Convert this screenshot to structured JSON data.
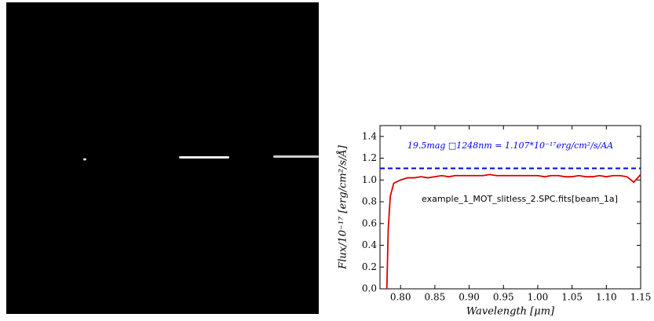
{
  "chart_data": {
    "type": "line",
    "title": "19.5mag □1248nm = 1.107*10⁻¹⁷erg/cm²/s/AA",
    "annotation": "example_1_MOT_slitless_2.SPC.fits[beam_1a]",
    "x_label": "Wavelength [μm]",
    "y_label": "Flux/10⁻¹⁷ [erg/cm²/s/Å]",
    "x": [
      0.78,
      0.782,
      0.785,
      0.79,
      0.8,
      0.81,
      0.82,
      0.83,
      0.84,
      0.85,
      0.86,
      0.87,
      0.88,
      0.89,
      0.9,
      0.91,
      0.92,
      0.93,
      0.94,
      0.95,
      0.96,
      0.97,
      0.98,
      0.99,
      1.0,
      1.01,
      1.02,
      1.03,
      1.04,
      1.05,
      1.06,
      1.07,
      1.08,
      1.09,
      1.1,
      1.11,
      1.12,
      1.13,
      1.14,
      1.15
    ],
    "series": [
      {
        "color": "#dd0000",
        "values": [
          0.0,
          0.55,
          0.85,
          0.97,
          1.0,
          1.02,
          1.02,
          1.03,
          1.02,
          1.03,
          1.04,
          1.03,
          1.04,
          1.04,
          1.04,
          1.04,
          1.04,
          1.05,
          1.04,
          1.04,
          1.04,
          1.04,
          1.04,
          1.04,
          1.04,
          1.03,
          1.04,
          1.04,
          1.03,
          1.03,
          1.04,
          1.03,
          1.03,
          1.04,
          1.03,
          1.04,
          1.04,
          1.03,
          0.98,
          1.05
        ]
      }
    ],
    "reference_line": {
      "value": 1.107,
      "color": "#0000ee"
    },
    "xlim": [
      0.77,
      1.15
    ],
    "ylim": [
      0,
      1.5
    ],
    "xticks": [
      {
        "value": 0.8,
        "label": "0.80"
      },
      {
        "value": 0.85,
        "label": "0.85"
      },
      {
        "value": 0.9,
        "label": "0.90"
      },
      {
        "value": 0.95,
        "label": "0.95"
      },
      {
        "value": 1.0,
        "label": "1.00"
      },
      {
        "value": 1.05,
        "label": "1.05"
      },
      {
        "value": 1.1,
        "label": "1.10"
      },
      {
        "value": 1.15,
        "label": "1.15"
      }
    ],
    "yticks": [
      {
        "value": 0,
        "label": "0.0"
      },
      {
        "value": 0.2,
        "label": "0.2"
      },
      {
        "value": 0.4,
        "label": "0.4"
      },
      {
        "value": 0.6,
        "label": "0.6"
      },
      {
        "value": 0.8,
        "label": "0.8"
      },
      {
        "value": 1.0,
        "label": "1.0"
      },
      {
        "value": 1.2,
        "label": "1.2"
      },
      {
        "value": 1.4,
        "label": "1.4"
      }
    ],
    "grid": false
  }
}
